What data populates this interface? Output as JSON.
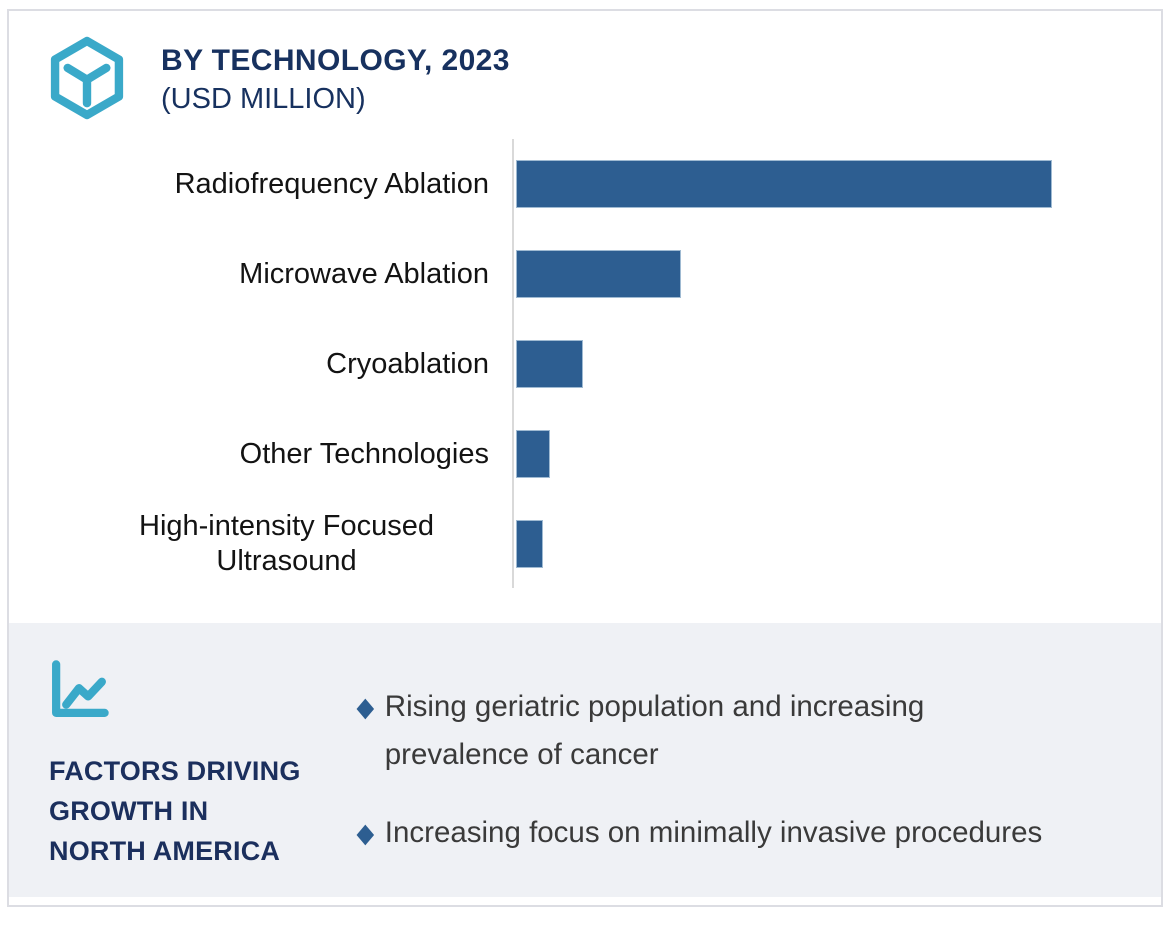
{
  "header": {
    "title": "BY TECHNOLOGY, 2023",
    "subtitle": "(USD MILLION)",
    "icon": "hexagon-cube-icon"
  },
  "chart_data": {
    "type": "bar",
    "orientation": "horizontal",
    "title": "BY TECHNOLOGY, 2023",
    "subtitle": "(USD MILLION)",
    "xlabel": "",
    "ylabel": "",
    "gridlines": false,
    "value_labels_shown": false,
    "numeric_axis_shown": false,
    "categories": [
      "Radiofrequency Ablation",
      "Microwave Ablation",
      "Cryoablation",
      "Other Technologies",
      "High-intensity Focused Ultrasound"
    ],
    "values_pct_of_max": [
      100,
      30.8,
      12.5,
      6.3,
      5.0
    ],
    "bar_color": "#2d5e91",
    "axis_line_color": "#d9d9d9"
  },
  "factors": {
    "icon": "line-chart-icon",
    "title_lines": [
      "FACTORS DRIVING",
      "GROWTH IN",
      "NORTH AMERICA"
    ],
    "bullet_glyph": "◆",
    "bullets": [
      "Rising geriatric population and increasing prevalence of cancer",
      "Increasing focus on minimally invasive procedures"
    ],
    "panel_bg": "#eff1f5"
  },
  "colors": {
    "accent_teal": "#3aa9c9",
    "navy": "#17315f",
    "bar_blue": "#2d5e91",
    "panel_bg": "#eff1f5",
    "body_text": "#3a3a3a"
  }
}
